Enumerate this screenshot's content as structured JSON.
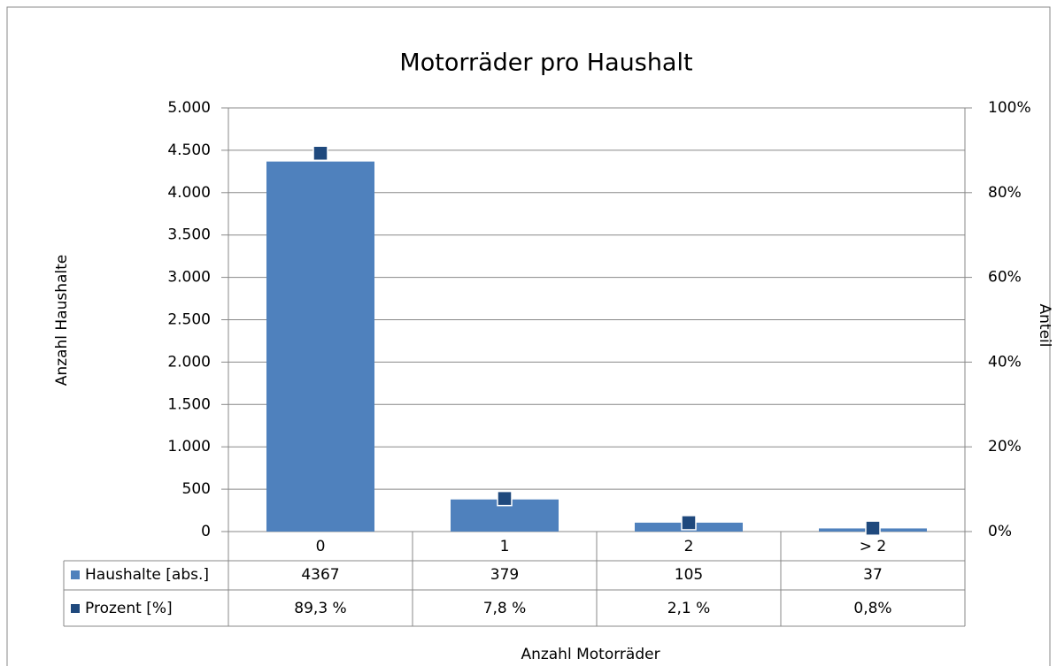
{
  "chart_data": {
    "type": "bar",
    "title": "Motorräder pro Haushalt",
    "xlabel": "Anzahl Motorräder",
    "ylabel": "Anzahl Haushalte",
    "y2label": "Anteil",
    "categories": [
      "0",
      "1",
      "2",
      "> 2"
    ],
    "series": [
      {
        "name": "Haushalte [abs.]",
        "color": "#4f81bd",
        "values": [
          4367,
          379,
          105,
          37
        ]
      },
      {
        "name": "Prozent [%]",
        "color": "#1f497d",
        "axis": "y2",
        "values": [
          89.3,
          7.8,
          2.1,
          0.8
        ],
        "value_labels": [
          "89,3 %",
          "7,8 %",
          "2,1 %",
          "0,8%"
        ]
      }
    ],
    "ylim": [
      0,
      5000
    ],
    "yticks": [
      0,
      500,
      {
        "value": 1000,
        "label": "1.000"
      },
      {
        "value": 1500,
        "label": "1.500"
      },
      {
        "value": 2000,
        "label": "2.000"
      },
      {
        "value": 2500,
        "label": "2.500"
      },
      {
        "value": 3000,
        "label": "3.000"
      },
      {
        "value": 3500,
        "label": "3.500"
      },
      {
        "value": 4000,
        "label": "4.000"
      },
      {
        "value": 4500,
        "label": "4.500"
      },
      {
        "value": 5000,
        "label": "5.000"
      }
    ],
    "y2lim": [
      0,
      100
    ],
    "y2ticks": [
      {
        "value": 0,
        "label": "0%"
      },
      {
        "value": 20,
        "label": "20%"
      },
      {
        "value": 40,
        "label": "40%"
      },
      {
        "value": 60,
        "label": "60%"
      },
      {
        "value": 80,
        "label": "80%"
      },
      {
        "value": 100,
        "label": "100%"
      }
    ],
    "grid": true
  }
}
